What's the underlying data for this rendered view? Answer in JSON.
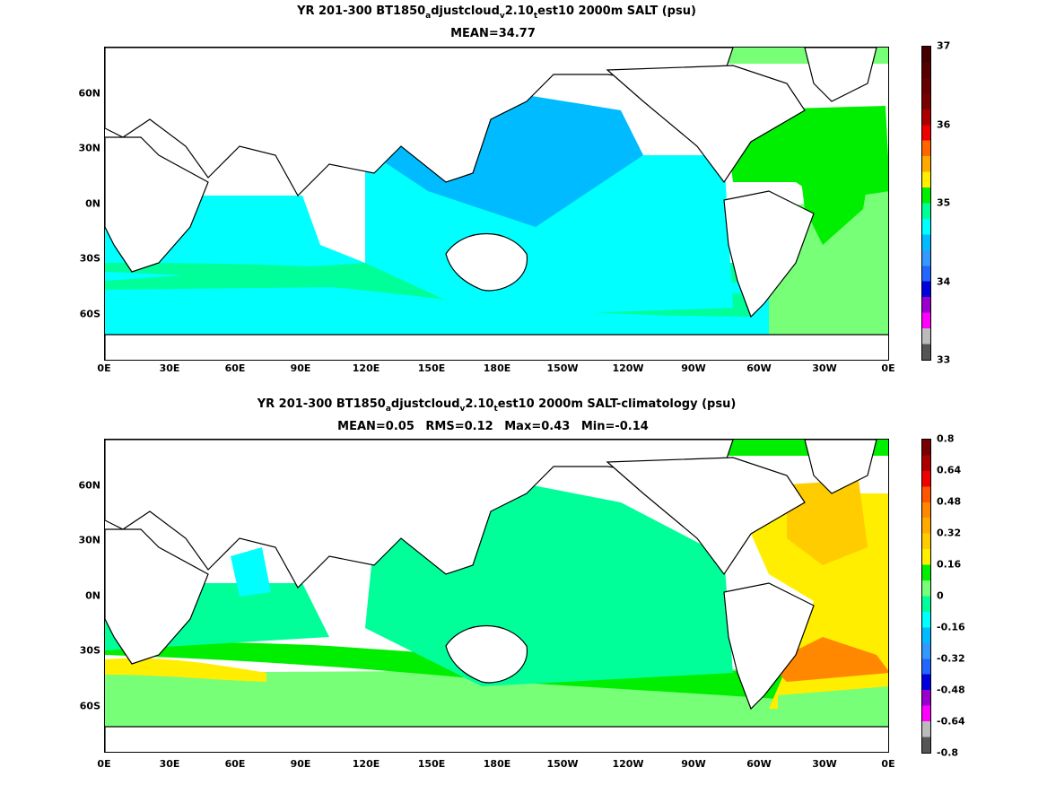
{
  "chart_data": [
    {
      "type": "heatmap",
      "title": "YR 201-300 BT1850_adjustcloud_v2.10_test10 2000m SALT (psu)",
      "title_parts": {
        "a": "YR 201-300 BT1850",
        "b": "a",
        "c": "djustcloud",
        "d": "v",
        "e": "2.10",
        "f": "t",
        "g": "est10 2000m SALT (psu)"
      },
      "stats": {
        "mean": "MEAN=34.77"
      },
      "x_ticks": [
        "0E",
        "30E",
        "60E",
        "90E",
        "120E",
        "150E",
        "180E",
        "150W",
        "120W",
        "90W",
        "60W",
        "30W",
        "0E"
      ],
      "y_ticks": [
        "60N",
        "30N",
        "0N",
        "30S",
        "60S"
      ],
      "colorbar": {
        "range": [
          33,
          37
        ],
        "labels": [
          "37",
          "36",
          "35",
          "34",
          "33"
        ],
        "colors": [
          "#555555",
          "#bbbbbb",
          "#ff00ff",
          "#9900cc",
          "#0000dd",
          "#2266ff",
          "#3399ff",
          "#00bbff",
          "#00ffff",
          "#00ff99",
          "#00ee00",
          "#ffee00",
          "#ffaa00",
          "#ff6600",
          "#ee0000",
          "#aa0000",
          "#770000",
          "#660000",
          "#550000",
          "#440000"
        ]
      },
      "regions": {
        "atlantic": "#00ee00",
        "south_atlantic": "#77ff77",
        "pacific_north": "#00bbff",
        "pacific_south": "#00ffff",
        "southern_ocean": "#00ff99",
        "arctic": "#77ff77"
      }
    },
    {
      "type": "heatmap",
      "title": "YR 201-300 BT1850_adjustcloud_v2.10_test10 2000m SALT-climatology (psu)",
      "title_parts": {
        "a": "YR 201-300 BT1850",
        "b": "a",
        "c": "djustcloud",
        "d": "v",
        "e": "2.10",
        "f": "t",
        "g": "est10 2000m SALT-climatology (psu)"
      },
      "stats": {
        "mean": "MEAN=0.05",
        "rms": "RMS=0.12",
        "max": "Max=0.43",
        "min": "Min=-0.14"
      },
      "x_ticks": [
        "0E",
        "30E",
        "60E",
        "90E",
        "120E",
        "150E",
        "180E",
        "150W",
        "120W",
        "90W",
        "60W",
        "30W",
        "0E"
      ],
      "y_ticks": [
        "60N",
        "30N",
        "0N",
        "30S",
        "60S"
      ],
      "colorbar": {
        "range": [
          -0.8,
          0.8
        ],
        "labels": [
          "0.8",
          "0.64",
          "0.48",
          "0.32",
          "0.16",
          "0",
          "-0.16",
          "-0.32",
          "-0.48",
          "-0.64",
          "-0.8"
        ],
        "colors": [
          "#555555",
          "#bbbbbb",
          "#ff00ff",
          "#9900cc",
          "#0000dd",
          "#2266ff",
          "#3399ff",
          "#00bbff",
          "#00ffff",
          "#00ff99",
          "#77ff77",
          "#00ee00",
          "#ffee00",
          "#ffcc00",
          "#ffaa00",
          "#ff8800",
          "#ff5500",
          "#ee0000",
          "#aa0000",
          "#770000"
        ]
      },
      "regions": {
        "atlantic": "#ffee00",
        "pacific": "#00ff99",
        "southern_band": "#00ee00",
        "indian": "#00ff99"
      }
    }
  ]
}
